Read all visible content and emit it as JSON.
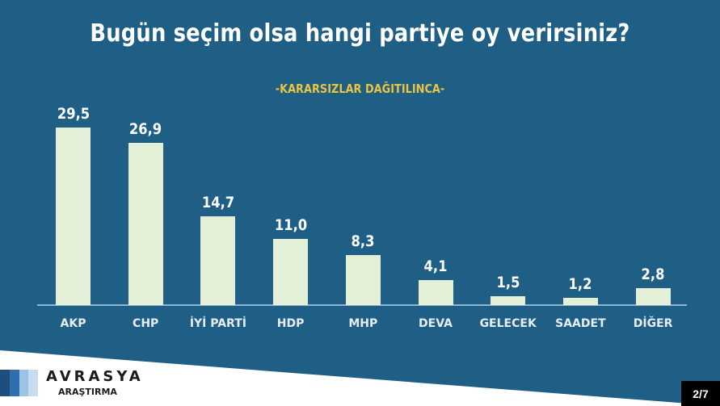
{
  "header": {
    "title": "Bugün seçim olsa hangi partiye oy verirsiniz?",
    "subtitle": "-KARARSIZLAR DAĞITILINCA-"
  },
  "colors": {
    "background": "#1f5e85",
    "bar": "#e4efd7",
    "subtitle": "#e9c440",
    "baseline": "#8fb6d2"
  },
  "chart_data": {
    "type": "bar",
    "title": "Bugün seçim olsa hangi partiye oy verirsiniz?",
    "subtitle": "-KARARSIZLAR DAĞITILINCA-",
    "categories": [
      "AKP",
      "CHP",
      "İYİ PARTİ",
      "HDP",
      "MHP",
      "DEVA",
      "GELECEK",
      "SAADET",
      "DİĞER"
    ],
    "values": [
      29.5,
      26.9,
      14.7,
      11.0,
      8.3,
      4.1,
      1.5,
      1.2,
      2.8
    ],
    "value_labels": [
      "29,5",
      "26,9",
      "14,7",
      "11,0",
      "8,3",
      "4,1",
      "1,5",
      "1,2",
      "2,8"
    ],
    "xlabel": "",
    "ylabel": "",
    "ylim": [
      0,
      30
    ],
    "grid": false,
    "legend": null
  },
  "footer": {
    "brand": "AVRASYA",
    "brand_sub": "ARAŞTIRMA",
    "logo_stripes": [
      "#1f4e7e",
      "#2f6fae",
      "#9cc3e6",
      "#c6dcef"
    ],
    "page_indicator": "2/7"
  }
}
